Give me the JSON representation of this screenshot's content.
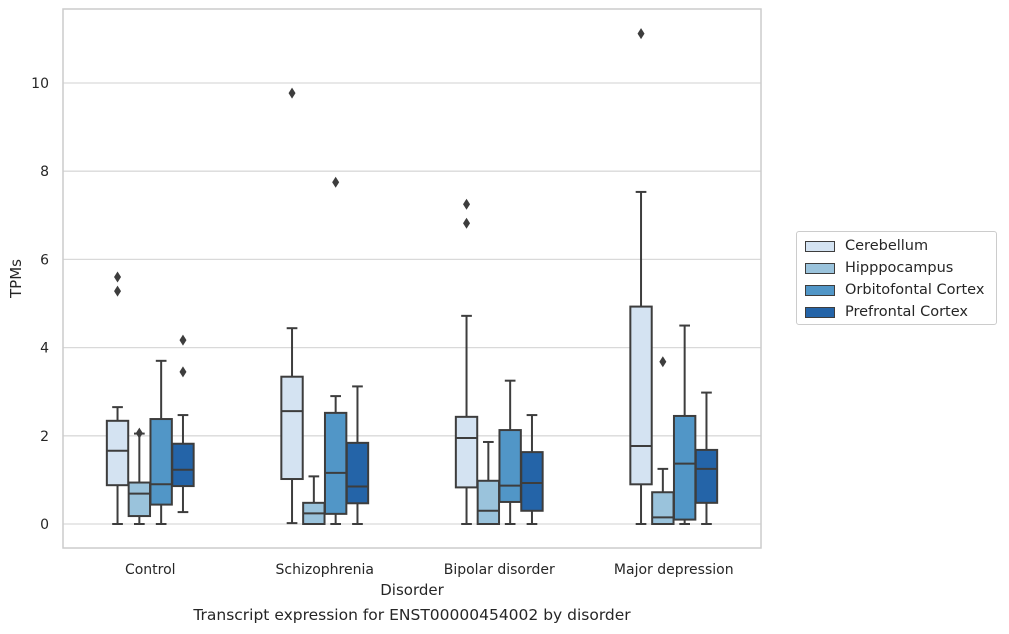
{
  "chart_data": {
    "type": "box",
    "title": "",
    "xlabel": "Disorder",
    "ylabel": "TPMs",
    "caption": "Transcript expression for ENST00000454002 by disorder",
    "ylim": [
      -0.5,
      11.7
    ],
    "yticks": [
      0,
      2,
      4,
      6,
      8,
      10
    ],
    "grid": "y",
    "legend_position": "right",
    "categories": [
      "Control",
      "Schizophrenia",
      "Bipolar disorder",
      "Major depression"
    ],
    "series": [
      {
        "name": "Cerebellum",
        "color": "#d4e3f2",
        "boxes": [
          {
            "whislo": 0.0,
            "q1": 0.88,
            "med": 1.66,
            "q3": 2.34,
            "whishi": 2.65,
            "fliers": [
              5.28,
              5.6
            ]
          },
          {
            "whislo": 0.02,
            "q1": 1.02,
            "med": 2.56,
            "q3": 3.34,
            "whishi": 4.44,
            "fliers": [
              9.77
            ]
          },
          {
            "whislo": 0.0,
            "q1": 0.83,
            "med": 1.95,
            "q3": 2.43,
            "whishi": 4.72,
            "fliers": [
              6.82,
              7.25
            ]
          },
          {
            "whislo": 0.0,
            "q1": 0.9,
            "med": 1.77,
            "q3": 4.93,
            "whishi": 7.53,
            "fliers": [
              11.12
            ]
          }
        ]
      },
      {
        "name": "Hipppocampus",
        "color": "#9ac3dc",
        "boxes": [
          {
            "whislo": 0.0,
            "q1": 0.18,
            "med": 0.69,
            "q3": 0.94,
            "whishi": 2.05,
            "fliers": [
              2.06
            ]
          },
          {
            "whislo": 0.0,
            "q1": 0.0,
            "med": 0.24,
            "q3": 0.48,
            "whishi": 1.08,
            "fliers": []
          },
          {
            "whislo": 0.0,
            "q1": 0.0,
            "med": 0.3,
            "q3": 0.98,
            "whishi": 1.86,
            "fliers": []
          },
          {
            "whislo": 0.0,
            "q1": 0.0,
            "med": 0.15,
            "q3": 0.72,
            "whishi": 1.25,
            "fliers": [
              3.68
            ]
          }
        ]
      },
      {
        "name": "Orbitofontal Cortex",
        "color": "#5196c7",
        "boxes": [
          {
            "whislo": 0.0,
            "q1": 0.44,
            "med": 0.9,
            "q3": 2.38,
            "whishi": 3.7,
            "fliers": []
          },
          {
            "whislo": 0.0,
            "q1": 0.23,
            "med": 1.16,
            "q3": 2.52,
            "whishi": 2.9,
            "fliers": [
              7.75
            ]
          },
          {
            "whislo": 0.0,
            "q1": 0.5,
            "med": 0.87,
            "q3": 2.13,
            "whishi": 3.25,
            "fliers": []
          },
          {
            "whislo": 0.0,
            "q1": 0.1,
            "med": 1.37,
            "q3": 2.45,
            "whishi": 4.5,
            "fliers": []
          }
        ]
      },
      {
        "name": "Prefrontal Cortex",
        "color": "#2464a8",
        "boxes": [
          {
            "whislo": 0.27,
            "q1": 0.86,
            "med": 1.23,
            "q3": 1.82,
            "whishi": 2.47,
            "fliers": [
              3.45,
              4.17
            ]
          },
          {
            "whislo": 0.0,
            "q1": 0.47,
            "med": 0.85,
            "q3": 1.84,
            "whishi": 3.12,
            "fliers": []
          },
          {
            "whislo": 0.0,
            "q1": 0.3,
            "med": 0.93,
            "q3": 1.63,
            "whishi": 2.47,
            "fliers": []
          },
          {
            "whislo": 0.0,
            "q1": 0.48,
            "med": 1.25,
            "q3": 1.68,
            "whishi": 2.98,
            "fliers": []
          }
        ]
      }
    ]
  }
}
